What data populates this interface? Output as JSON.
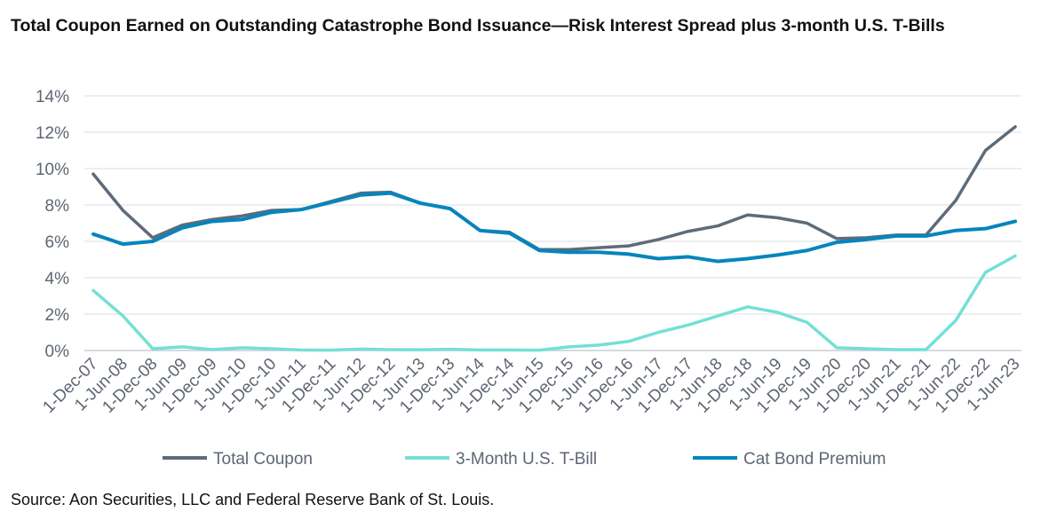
{
  "chart_data": {
    "type": "line",
    "title": "Total Coupon Earned on Outstanding Catastrophe Bond Issuance—Risk Interest Spread plus 3-month U.S. T-Bills",
    "source": "Source: Aon Securities, LLC and Federal Reserve Bank of St. Louis.",
    "ylim": [
      0,
      14
    ],
    "yticks": [
      "0%",
      "2%",
      "4%",
      "6%",
      "8%",
      "10%",
      "12%",
      "14%"
    ],
    "grid": "horizontal",
    "legend_position": "bottom",
    "x": [
      "1-Dec-07",
      "1-Jun-08",
      "1-Dec-08",
      "1-Jun-09",
      "1-Dec-09",
      "1-Jun-10",
      "1-Dec-10",
      "1-Jun-11",
      "1-Dec-11",
      "1-Jun-12",
      "1-Dec-12",
      "1-Jun-13",
      "1-Dec-13",
      "1-Jun-14",
      "1-Dec-14",
      "1-Jun-15",
      "1-Dec-15",
      "1-Jun-16",
      "1-Dec-16",
      "1-Jun-17",
      "1-Dec-17",
      "1-Jun-18",
      "1-Dec-18",
      "1-Jun-19",
      "1-Dec-19",
      "1-Jun-20",
      "1-Dec-20",
      "1-Jun-21",
      "1-Dec-21",
      "1-Jun-22",
      "1-Dec-22",
      "1-Jun-23"
    ],
    "series": [
      {
        "name": "Total Coupon",
        "color": "#5e6b78",
        "values": [
          9.7,
          7.7,
          6.2,
          6.9,
          7.2,
          7.4,
          7.7,
          7.75,
          8.2,
          8.65,
          8.7,
          8.1,
          7.8,
          6.6,
          6.5,
          5.55,
          5.55,
          5.65,
          5.75,
          6.1,
          6.55,
          6.85,
          7.45,
          7.3,
          7.0,
          6.15,
          6.2,
          6.35,
          6.35,
          8.25,
          11.0,
          12.3
        ]
      },
      {
        "name": "3-Month U.S. T-Bill",
        "color": "#74e0d4",
        "values": [
          3.3,
          1.9,
          0.1,
          0.2,
          0.05,
          0.15,
          0.1,
          0.03,
          0.02,
          0.08,
          0.05,
          0.04,
          0.07,
          0.03,
          0.03,
          0.02,
          0.2,
          0.3,
          0.5,
          1.0,
          1.4,
          1.9,
          2.4,
          2.1,
          1.55,
          0.15,
          0.1,
          0.05,
          0.05,
          1.65,
          4.3,
          5.2
        ]
      },
      {
        "name": "Cat Bond Premium",
        "color": "#0685bd",
        "values": [
          6.4,
          5.85,
          6.0,
          6.75,
          7.1,
          7.2,
          7.6,
          7.75,
          8.15,
          8.55,
          8.65,
          8.1,
          7.8,
          6.6,
          6.45,
          5.5,
          5.4,
          5.4,
          5.3,
          5.05,
          5.15,
          4.9,
          5.05,
          5.25,
          5.5,
          5.95,
          6.1,
          6.3,
          6.3,
          6.6,
          6.7,
          7.1
        ]
      }
    ]
  }
}
